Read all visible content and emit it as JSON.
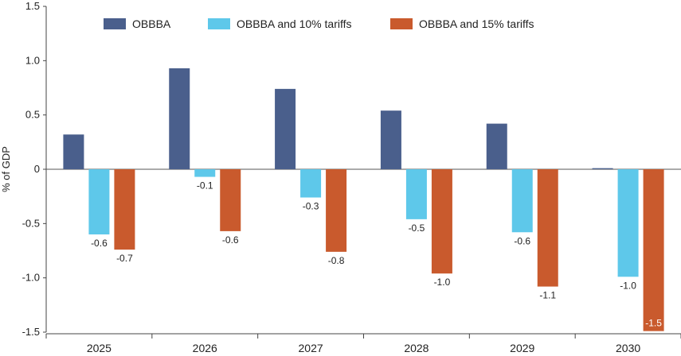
{
  "chart_data": {
    "type": "bar",
    "title": "",
    "xlabel": "",
    "ylabel": "% of GDP",
    "ylim": [
      -1.5,
      1.5
    ],
    "yticks": [
      1.5,
      1.0,
      0.5,
      0,
      -0.5,
      -1.0,
      -1.5
    ],
    "ytick_labels": [
      "1.5",
      "1.0",
      "0.5",
      "0",
      "-0.5",
      "-1.0",
      "-1.5"
    ],
    "categories": [
      "2025",
      "2026",
      "2027",
      "2028",
      "2029",
      "2030"
    ],
    "legend_position": "top",
    "series": [
      {
        "name": "OBBBA",
        "color": "#4a5f8c",
        "values": [
          0.32,
          0.93,
          0.74,
          0.54,
          0.42,
          0.01
        ],
        "labels": [
          "",
          "",
          "",
          "",
          "",
          ""
        ]
      },
      {
        "name": "OBBBA and 10% tariffs",
        "color": "#5ec8ea",
        "values": [
          -0.6,
          -0.07,
          -0.26,
          -0.46,
          -0.58,
          -0.99
        ],
        "labels": [
          "-0.6",
          "-0.1",
          "-0.3",
          "-0.5",
          "-0.6",
          "-1.0"
        ]
      },
      {
        "name": "OBBBA and 15% tariffs",
        "color": "#c95a2d",
        "values": [
          -0.74,
          -0.57,
          -0.76,
          -0.96,
          -1.08,
          -1.49
        ],
        "labels": [
          "-0.7",
          "-0.6",
          "-0.8",
          "-1.0",
          "-1.1",
          "-1.5"
        ]
      }
    ]
  }
}
